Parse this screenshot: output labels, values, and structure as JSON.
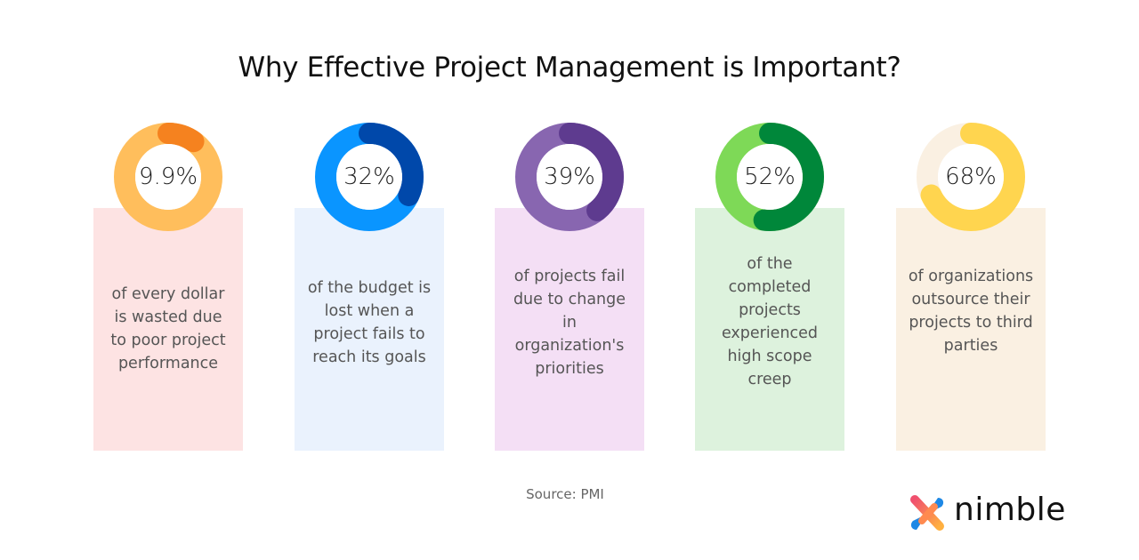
{
  "title": "Why Effective Project Management is Important?",
  "chart_data": {
    "type": "pie",
    "variant": "donut",
    "items": [
      {
        "label": "9.9%",
        "value": 9.9,
        "description": "of every dollar is wasted due to poor project performance",
        "color": "#F5821F",
        "track_color": "#FFBE5C",
        "card_color": "#FDE3E3"
      },
      {
        "label": "32%",
        "value": 32,
        "description": "of the budget is lost when a project fails to reach its goals",
        "color": "#0048AA",
        "track_color": "#0A95FF",
        "card_color": "#EAF2FD"
      },
      {
        "label": "39%",
        "value": 39,
        "description": "of projects fail due to change in organization's priorities",
        "color": "#5E3B8F",
        "track_color": "#8866B0",
        "card_color": "#F4DFF5"
      },
      {
        "label": "52%",
        "value": 52,
        "description": "of the completed projects experienced high scope creep",
        "color": "#00873A",
        "track_color": "#7ED957",
        "card_color": "#DDF2DD"
      },
      {
        "label": "68%",
        "value": 68,
        "description": "of organizations outsource their projects to third parties",
        "color": "#FFD54F",
        "track_color": "#FAF0E2",
        "card_color": "#FAF0E2"
      }
    ]
  },
  "source": "Source: PMI",
  "logo": {
    "text": "nimble"
  }
}
